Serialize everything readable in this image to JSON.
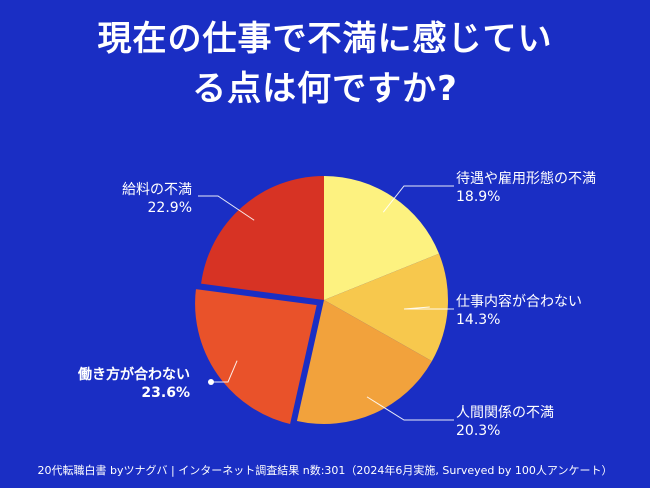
{
  "title_lines": [
    "現在の仕事で不満に感じてい",
    "る点は何ですか?"
  ],
  "footer": "20代転職白書 byツナグバ | インターネット調査結果 n数:301（2024年6月実施, Surveyed by 100人アンケート）",
  "chart_data": {
    "type": "pie",
    "title": "現在の仕事で不満に感じている点は何ですか?",
    "slices": [
      {
        "label": "待遇や雇用形態の不満",
        "value": 18.9,
        "display": "18.9%",
        "color": "#fdf280"
      },
      {
        "label": "仕事内容が合わない",
        "value": 14.3,
        "display": "14.3%",
        "color": "#f7c84d"
      },
      {
        "label": "人間関係の不満",
        "value": 20.3,
        "display": "20.3%",
        "color": "#f2a23c"
      },
      {
        "label": "働き方が合わない",
        "value": 23.6,
        "display": "23.6%",
        "color": "#e9522a",
        "highlight": true
      },
      {
        "label": "給料の不満",
        "value": 22.9,
        "display": "22.9%",
        "color": "#d73324"
      }
    ]
  }
}
